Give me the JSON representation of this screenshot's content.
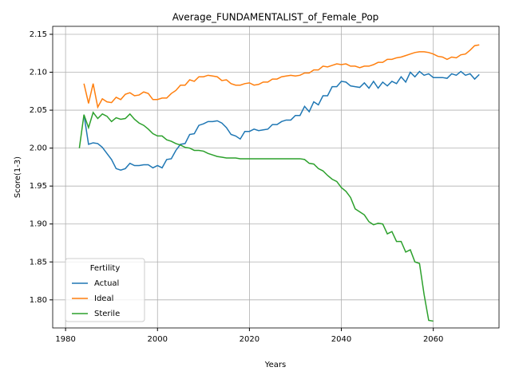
{
  "chart_data": {
    "type": "line",
    "title": "Average_FUNDAMENTALIST_of_Female_Pop",
    "xlabel": "Years",
    "ylabel": "Score(1-3)",
    "grid": true,
    "legend": {
      "title": "Fertility",
      "loc": "lower left"
    },
    "x": [
      1983,
      1984,
      1985,
      1986,
      1987,
      1988,
      1989,
      1990,
      1991,
      1992,
      1993,
      1994,
      1995,
      1996,
      1997,
      1998,
      1999,
      2000,
      2001,
      2002,
      2003,
      2004,
      2005,
      2006,
      2007,
      2008,
      2009,
      2010,
      2011,
      2012,
      2013,
      2014,
      2015,
      2016,
      2017,
      2018,
      2019,
      2020,
      2021,
      2022,
      2023,
      2024,
      2025,
      2026,
      2027,
      2028,
      2029,
      2030,
      2031,
      2032,
      2033,
      2034,
      2035,
      2036,
      2037,
      2038,
      2039,
      2040,
      2041,
      2042,
      2043,
      2044,
      2045,
      2046,
      2047,
      2048,
      2049,
      2050,
      2051,
      2052,
      2053,
      2054,
      2055,
      2056,
      2057,
      2058,
      2059,
      2060,
      2061,
      2062,
      2063,
      2064,
      2065,
      2066,
      2067,
      2068,
      2069,
      2070
    ],
    "series": [
      {
        "name": "Actual",
        "color": "#1f77b4",
        "values": [
          null,
          2.044,
          2.005,
          2.007,
          2.006,
          2.001,
          1.993,
          1.985,
          1.973,
          1.971,
          1.973,
          1.98,
          1.977,
          1.977,
          1.978,
          1.978,
          1.974,
          1.977,
          1.974,
          1.985,
          1.986,
          1.997,
          2.005,
          2.006,
          2.018,
          2.019,
          2.03,
          2.032,
          2.035,
          2.035,
          2.036,
          2.033,
          2.027,
          2.018,
          2.016,
          2.012,
          2.022,
          2.022,
          2.025,
          2.023,
          2.024,
          2.025,
          2.031,
          2.031,
          2.035,
          2.037,
          2.037,
          2.043,
          2.043,
          2.055,
          2.048,
          2.061,
          2.057,
          2.069,
          2.069,
          2.081,
          2.081,
          2.088,
          2.087,
          2.082,
          2.081,
          2.08,
          2.086,
          2.079,
          2.088,
          2.079,
          2.087,
          2.082,
          2.088,
          2.085,
          2.094,
          2.087,
          2.1,
          2.094,
          2.101,
          2.096,
          2.098,
          2.093,
          2.093,
          2.093,
          2.092,
          2.098,
          2.096,
          2.101,
          2.096,
          2.098,
          2.091,
          2.097
        ]
      },
      {
        "name": "Ideal",
        "color": "#ff7f0e",
        "values": [
          null,
          2.085,
          2.059,
          2.085,
          2.054,
          2.065,
          2.061,
          2.06,
          2.067,
          2.064,
          2.071,
          2.073,
          2.069,
          2.07,
          2.074,
          2.072,
          2.064,
          2.064,
          2.066,
          2.066,
          2.072,
          2.076,
          2.083,
          2.083,
          2.09,
          2.088,
          2.094,
          2.094,
          2.096,
          2.095,
          2.094,
          2.089,
          2.09,
          2.085,
          2.083,
          2.083,
          2.085,
          2.086,
          2.083,
          2.084,
          2.087,
          2.087,
          2.091,
          2.091,
          2.094,
          2.095,
          2.096,
          2.095,
          2.096,
          2.099,
          2.099,
          2.103,
          2.103,
          2.108,
          2.107,
          2.109,
          2.111,
          2.11,
          2.111,
          2.108,
          2.108,
          2.106,
          2.108,
          2.108,
          2.11,
          2.113,
          2.113,
          2.117,
          2.117,
          2.119,
          2.12,
          2.122,
          2.124,
          2.126,
          2.127,
          2.127,
          2.126,
          2.124,
          2.121,
          2.12,
          2.117,
          2.12,
          2.119,
          2.123,
          2.124,
          2.129,
          2.135,
          2.136
        ]
      },
      {
        "name": "Sterile",
        "color": "#2ca02c",
        "values": [
          2.0,
          2.044,
          2.027,
          2.047,
          2.039,
          2.045,
          2.042,
          2.035,
          2.04,
          2.038,
          2.039,
          2.045,
          2.038,
          2.033,
          2.03,
          2.025,
          2.019,
          2.016,
          2.016,
          2.011,
          2.009,
          2.006,
          2.004,
          2.001,
          2.0,
          1.997,
          1.997,
          1.996,
          1.993,
          1.991,
          1.989,
          1.988,
          1.987,
          1.987,
          1.987,
          1.986,
          1.986,
          1.986,
          1.986,
          1.986,
          1.986,
          1.986,
          1.986,
          1.986,
          1.986,
          1.986,
          1.986,
          1.986,
          1.986,
          1.985,
          1.98,
          1.979,
          1.973,
          1.97,
          1.964,
          1.959,
          1.956,
          1.948,
          1.943,
          1.935,
          1.92,
          1.916,
          1.912,
          1.903,
          1.899,
          1.901,
          1.9,
          1.887,
          1.89,
          1.877,
          1.877,
          1.863,
          1.866,
          1.85,
          1.848,
          1.807,
          1.773,
          1.772,
          null,
          null,
          null,
          null,
          null,
          null,
          null,
          null,
          null,
          null
        ]
      }
    ],
    "xlim": [
      1977.2,
      2074.3
    ],
    "xticks": [
      1980,
      2000,
      2020,
      2040,
      2060
    ],
    "ylim": [
      1.763,
      2.1605
    ],
    "yticks": [
      {
        "value": 1.8,
        "label": "1.80"
      },
      {
        "value": 1.85,
        "label": "1.85"
      },
      {
        "value": 1.9,
        "label": "1.90"
      },
      {
        "value": 1.95,
        "label": "1.95"
      },
      {
        "value": 2.0,
        "label": "2.00"
      },
      {
        "value": 2.05,
        "label": "2.05"
      },
      {
        "value": 2.1,
        "label": "2.10"
      },
      {
        "value": 2.15,
        "label": "2.15"
      }
    ]
  }
}
